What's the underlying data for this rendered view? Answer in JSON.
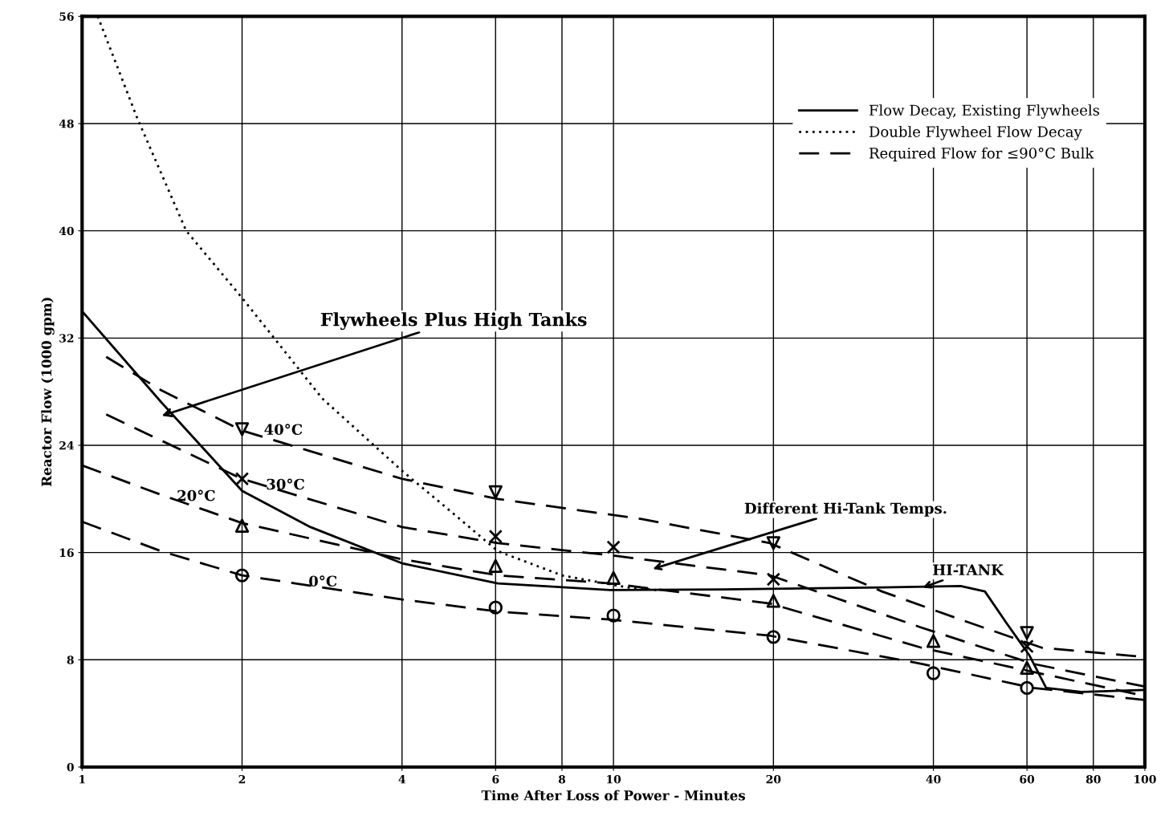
{
  "chart_data": {
    "type": "line",
    "xlabel": "Time After Loss of Power - Minutes",
    "ylabel": "Reactor Flow (1000 gpm)",
    "log": "x",
    "xlim": [
      1,
      100
    ],
    "xticks": [
      1,
      2,
      4,
      6,
      8,
      10,
      20,
      40,
      60,
      80,
      100
    ],
    "ylim": [
      0,
      56
    ],
    "yticks": [
      0,
      8,
      16,
      24,
      32,
      40,
      48,
      56
    ],
    "grid": true,
    "legend": "top right",
    "series": [
      {
        "name": "Flow Decay, Existing Flywheels",
        "color": "#000000",
        "line_style": "solid",
        "x": [
          1,
          1.41,
          2,
          2.69,
          4,
          6.06,
          9.86,
          16,
          32,
          45,
          50,
          55,
          60.7,
          65.2,
          76,
          100
        ],
        "values": [
          34.0,
          27.2,
          20.6,
          17.9,
          15.2,
          13.7,
          13.2,
          13.25,
          13.4,
          13.5,
          13.1,
          10.7,
          8.3,
          5.9,
          5.6,
          5.75
        ]
      },
      {
        "name": "Double Flywheel Flow Decay",
        "color": "#000000",
        "line_style": "dotted",
        "x": [
          1.07,
          1.27,
          1.57,
          2,
          2.83,
          4,
          4.93,
          6.06,
          8,
          10.6,
          12.1
        ],
        "values": [
          56,
          48.4,
          40,
          35,
          27.5,
          22.1,
          19.1,
          16.1,
          14.3,
          13.4,
          13.2
        ]
      },
      {
        "name": "Required Flow for ≤90°C Bulk",
        "color": "#000000",
        "line_style": "dashed",
        "x": [
          1.11,
          1.41,
          2,
          4,
          6.06,
          11.3,
          19.7,
          32,
          45,
          64,
          100
        ],
        "values": [
          30.6,
          28.1,
          25.1,
          21.5,
          20,
          18.5,
          16.7,
          13.1,
          11,
          8.9,
          8.2
        ]
      },
      {
        "color": "#000000",
        "line_style": "dashed",
        "x": [
          1.11,
          2,
          4,
          6.06,
          9.86,
          19.7,
          38,
          61.6,
          100
        ],
        "values": [
          26.3,
          21.5,
          17.9,
          16.7,
          15.8,
          14.3,
          10.4,
          7.7,
          6.0
        ]
      },
      {
        "color": "#000000",
        "line_style": "dashed",
        "x": [
          1,
          1.41,
          2,
          4,
          6.06,
          9.86,
          19.7,
          38,
          61.6,
          100
        ],
        "values": [
          22.5,
          20.3,
          18.2,
          15.5,
          14.3,
          13.7,
          12.2,
          8.9,
          7.1,
          5.3
        ]
      },
      {
        "color": "#000000",
        "line_style": "dashed",
        "x": [
          1,
          1.41,
          2,
          4,
          6.06,
          9.86,
          19.7,
          38,
          61.6,
          100
        ],
        "values": [
          18.3,
          16.1,
          14.3,
          12.5,
          11.6,
          11,
          9.8,
          7.7,
          5.9,
          5.0
        ]
      },
      {
        "type": "scatter",
        "marker": "triangle_down",
        "color": "#000000",
        "x": [
          2,
          6,
          20,
          60
        ],
        "values": [
          25.2,
          20.5,
          16.7,
          10
        ]
      },
      {
        "type": "scatter",
        "marker": "cross",
        "color": "#000000",
        "x": [
          2,
          6,
          10,
          20,
          60
        ],
        "values": [
          21.5,
          17.2,
          16.4,
          14,
          9
        ]
      },
      {
        "type": "scatter",
        "marker": "triangle",
        "color": "#000000",
        "x": [
          2,
          6,
          10,
          20,
          40,
          60
        ],
        "values": [
          18,
          15,
          14.1,
          12.4,
          9.4,
          7.4
        ]
      },
      {
        "type": "scatter",
        "marker": "circle",
        "color": "#000000",
        "x": [
          2,
          6,
          10,
          20,
          40,
          60
        ],
        "values": [
          14.3,
          11.9,
          11.3,
          9.7,
          7,
          5.9
        ]
      }
    ],
    "annotations": [
      "Flywheels Plus High Tanks",
      "40°C",
      "30°C",
      "20°C",
      "0°C",
      "Different Hi-Tank Temps.",
      "HI-TANK"
    ]
  }
}
